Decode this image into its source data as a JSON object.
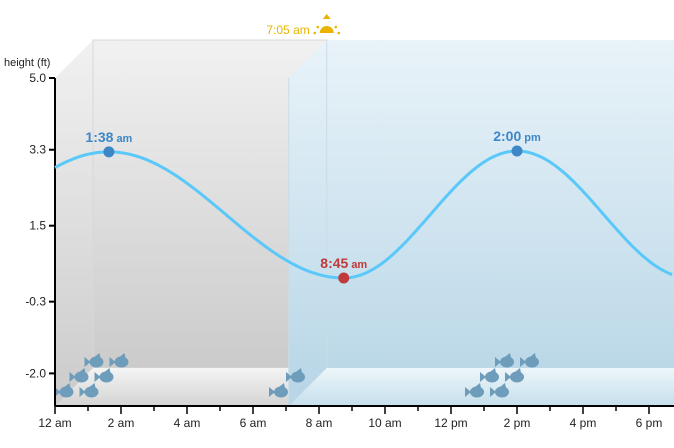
{
  "chart_data": {
    "type": "line",
    "title": "",
    "ylabel": "height (ft)",
    "xlabel": "",
    "xlim_hours": [
      0,
      18.75
    ],
    "ylim": [
      -2.77,
      5.0
    ],
    "y_ticks": [
      "5.0",
      "3.3",
      "1.5",
      "-0.3",
      "-2.0"
    ],
    "y_tick_values": [
      5.0,
      3.3,
      1.5,
      -0.3,
      -2.0
    ],
    "x_ticks": [
      "12 am",
      "2 am",
      "4 am",
      "6 am",
      "8 am",
      "10 am",
      "12 pm",
      "2 pm",
      "4 pm",
      "6 pm"
    ],
    "x_tick_hours": [
      0,
      2,
      4,
      6,
      8,
      10,
      12,
      14,
      16,
      18
    ],
    "extremes": [
      {
        "type": "high",
        "hour": 1.633,
        "height": 3.25,
        "time": "1:38",
        "ampm": "am",
        "color": "#3d87c7"
      },
      {
        "type": "low",
        "hour": 8.75,
        "height": 0.26,
        "time": "8:45",
        "ampm": "am",
        "color": "#c0393b"
      },
      {
        "type": "high",
        "hour": 14.0,
        "height": 3.27,
        "time": "2:00",
        "ampm": "pm",
        "color": "#3d87c7"
      }
    ],
    "sunrise": {
      "hour": 7.083,
      "label": "7:05 am",
      "color": "#e8b400"
    },
    "fish_activity_hours": [
      1.5,
      7.0,
      14.0
    ],
    "line_color": "#5bc8fa"
  }
}
